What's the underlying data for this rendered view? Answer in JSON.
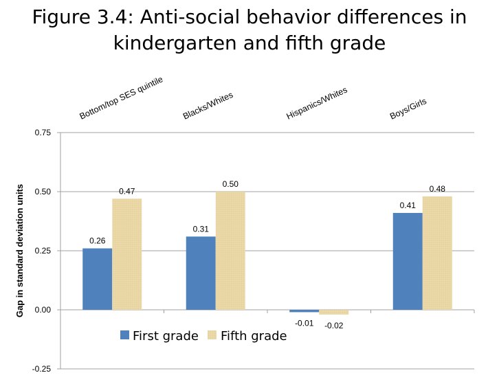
{
  "chart_data": {
    "type": "bar",
    "title": "Figure 3.4: Anti-social behavior differences in kindergarten and fifth grade",
    "title_lines": [
      "Figure 3.4: Anti-social behavior differences in",
      "kindergarten and fifth grade"
    ],
    "categories": [
      "Bottom/top SES quintile",
      "Blacks/Whites",
      "Hispanics/Whites",
      "Boys/Girls"
    ],
    "series": [
      {
        "name": "First grade",
        "color": "#4f81bd",
        "values": [
          0.26,
          0.31,
          -0.01,
          0.41
        ],
        "labels": [
          "0.26",
          "0.31",
          "-0.01",
          "0.41"
        ]
      },
      {
        "name": "Fifth grade",
        "color": "#e8d4a0",
        "values": [
          0.47,
          0.5,
          -0.02,
          0.48
        ],
        "labels": [
          "0.47",
          "0.50",
          "-0.02",
          "0.48"
        ]
      }
    ],
    "xlabel": "",
    "ylabel": "Gap in standard deviation units",
    "ylim": [
      -0.25,
      0.75
    ],
    "yticks": [
      "0.75",
      "0.50",
      "0.25",
      "0.00",
      "-0.25"
    ],
    "ytick_values": [
      0.75,
      0.5,
      0.25,
      0,
      -0.25
    ],
    "grid": true,
    "legend_position": "bottom-left-inside"
  }
}
